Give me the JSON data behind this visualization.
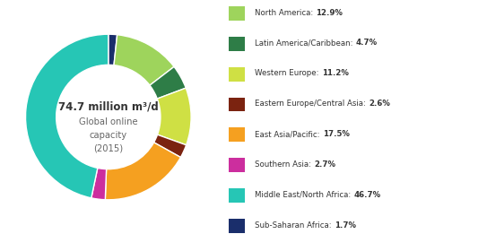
{
  "title_line1": "74.7 million m³/d",
  "title_line2": "Global online\ncapacity\n(2015)",
  "regions": [
    "North America",
    "Latin America/Caribbean",
    "Western Europe",
    "Eastern Europe/Central Asia",
    "East Asia/Pacific",
    "Southern Asia",
    "Middle East/North Africa",
    "Sub-Saharan Africa"
  ],
  "values": [
    12.9,
    4.7,
    11.2,
    2.6,
    17.5,
    2.7,
    46.7,
    1.7
  ],
  "colors": [
    "#9ed45c",
    "#2e7d47",
    "#cfe044",
    "#7b2310",
    "#f5a020",
    "#cc2e9e",
    "#26c6b5",
    "#1a2e6b"
  ],
  "legend_labels": [
    "North America: ",
    "Latin America/Caribbean: ",
    "Western Europe: ",
    "Eastern Europe/Central Asia: ",
    "East Asia/Pacific: ",
    "Southern Asia: ",
    "Middle East/North Africa: ",
    "Sub-Saharan Africa: "
  ],
  "legend_values": [
    "12.9%",
    "4.7%",
    "11.2%",
    "2.6%",
    "17.5%",
    "2.7%",
    "46.7%",
    "1.7%"
  ],
  "pie_order_indices": [
    7,
    0,
    1,
    2,
    3,
    4,
    5,
    6
  ],
  "bg_color": "#ffffff",
  "donut_width": 0.37,
  "startangle": 90
}
